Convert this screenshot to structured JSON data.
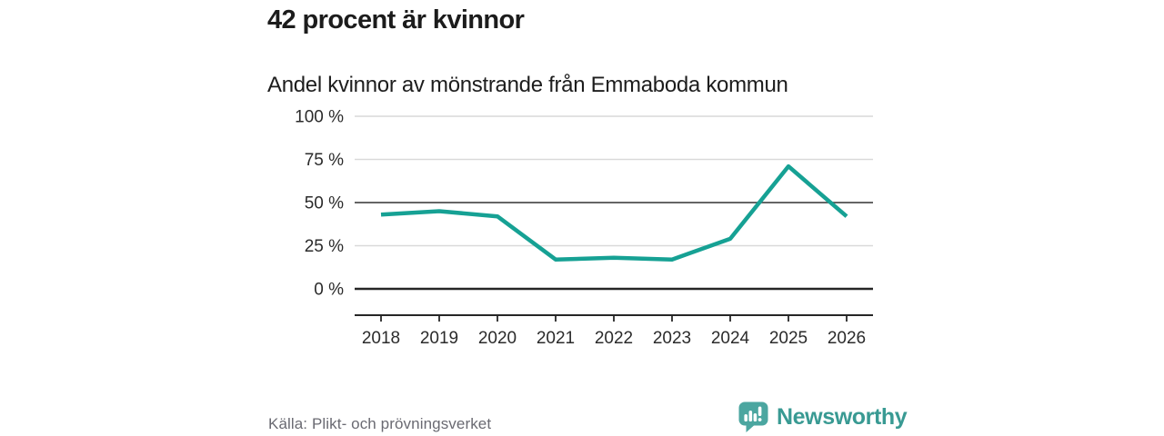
{
  "header": {
    "title": "42 procent är kvinnor",
    "subtitle": "Andel kvinnor av mönstrande från Emmaboda kommun"
  },
  "chart_data": {
    "type": "line",
    "title": "42 procent är kvinnor",
    "subtitle": "Andel kvinnor av mönstrande från Emmaboda kommun",
    "categories": [
      "2018",
      "2019",
      "2020",
      "2021",
      "2022",
      "2023",
      "2024",
      "2025",
      "2026"
    ],
    "series": [
      {
        "name": "Andel kvinnor av mönstrande",
        "values": [
          43,
          45,
          42,
          17,
          18,
          17,
          29,
          71,
          42
        ],
        "unit": "%"
      }
    ],
    "xlabel": "",
    "ylabel": "",
    "ylim": [
      0,
      100
    ],
    "yticks": [
      0,
      25,
      50,
      75,
      100
    ],
    "ytick_labels": [
      "0 %",
      "25 %",
      "50 %",
      "75 %",
      "100 %"
    ],
    "grid": "horizontal",
    "legend": "none",
    "colors": {
      "line": "#16a194",
      "grid_light": "#d9d9d9",
      "grid_mid": "#4f4f4f",
      "axis": "#262626",
      "tick_text": "#2b2b2b"
    }
  },
  "footer": {
    "source": "Källa: Plikt- och prövningsverket",
    "brand": "Newsworthy",
    "brand_icon": "newsworthy-speech-bubble-bar-chart-icon",
    "brand_text_color": "#399a93",
    "brand_icon_color": "#4ba6a0"
  }
}
